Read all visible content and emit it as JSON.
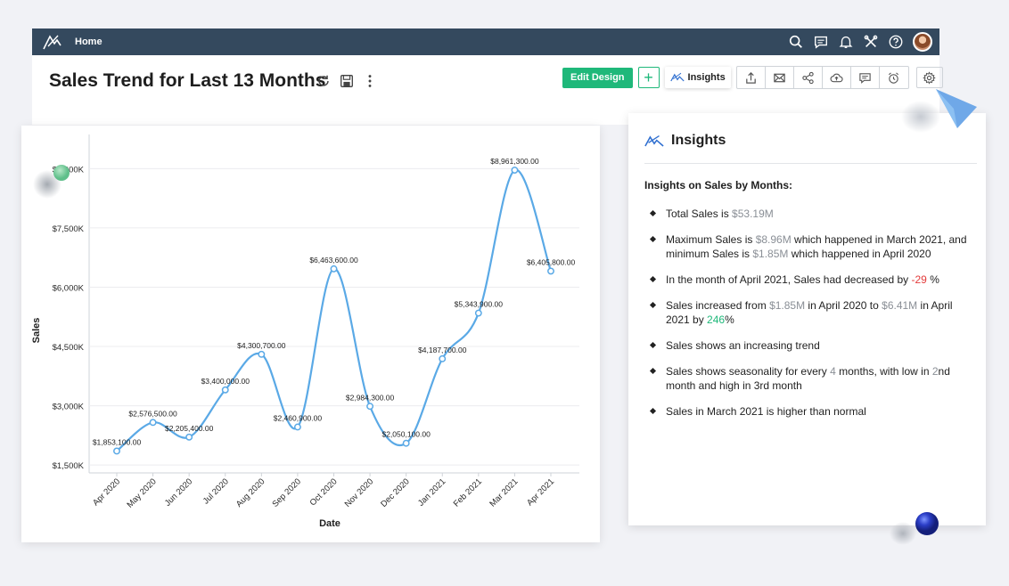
{
  "topbar": {
    "home_label": "Home",
    "icons": [
      "search-icon",
      "chat-icon",
      "bell-icon",
      "tools-icon",
      "help-icon",
      "avatar"
    ]
  },
  "header": {
    "title": "Sales Trend for Last 13 Months",
    "edit_design_label": "Edit Design",
    "add_label": "+",
    "insights_label": "Insights"
  },
  "chart_data": {
    "type": "line",
    "x": [
      "Apr 2020",
      "May 2020",
      "Jun 2020",
      "Jul 2020",
      "Aug 2020",
      "Sep 2020",
      "Oct 2020",
      "Nov 2020",
      "Dec 2020",
      "Jan 2021",
      "Feb 2021",
      "Mar 2021",
      "Apr 2021"
    ],
    "values": [
      1853100,
      2576500,
      2205400,
      3400000,
      4300700,
      2460900,
      6463600,
      2984300,
      2050100,
      4187700,
      5343900,
      8961300,
      6405800
    ],
    "data_labels": [
      "$1,853,100.00",
      "$2,576,500.00",
      "$2,205,400.00",
      "$3,400,000.00",
      "$4,300,700.00",
      "$2,460,900.00",
      "$6,463,600.00",
      "$2,984,300.00",
      "$2,050,100.00",
      "$4,187,700.00",
      "$5,343,900.00",
      "$8,961,300.00",
      "$6,405,800.00"
    ],
    "xlabel": "Date",
    "ylabel": "Sales",
    "yticks": [
      1500000,
      3000000,
      4500000,
      6000000,
      7500000,
      9000000
    ],
    "ytick_labels": [
      "$1,500K",
      "$3,000K",
      "$4,500K",
      "$6,000K",
      "$7,500K",
      "$9,000K"
    ],
    "ylim": [
      1300000,
      9300000
    ],
    "grid": true,
    "line_color": "#5aa9e6"
  },
  "insights": {
    "title": "Insights",
    "subtitle": "Insights on Sales by Months:",
    "items": [
      {
        "parts": [
          {
            "t": "Total Sales is "
          },
          {
            "t": "$53.19M",
            "c": "gray"
          }
        ]
      },
      {
        "parts": [
          {
            "t": "Maximum Sales is "
          },
          {
            "t": "$8.96M",
            "c": "gray"
          },
          {
            "t": " which happened in March 2021, and minimum Sales is "
          },
          {
            "t": "$1.85M",
            "c": "gray"
          },
          {
            "t": " which happened in April 2020"
          }
        ]
      },
      {
        "parts": [
          {
            "t": " In the month of April 2021, Sales had decreased by "
          },
          {
            "t": " -29",
            "c": "red"
          },
          {
            "t": " %"
          }
        ]
      },
      {
        "parts": [
          {
            "t": "Sales increased from "
          },
          {
            "t": " $1.85M ",
            "c": "gray"
          },
          {
            "t": " in April 2020 to "
          },
          {
            "t": " $6.41M",
            "c": "gray"
          },
          {
            "t": " in April 2021 by "
          },
          {
            "t": "246",
            "c": "green"
          },
          {
            "t": "%"
          }
        ]
      },
      {
        "parts": [
          {
            "t": "Sales shows an increasing trend"
          }
        ]
      },
      {
        "parts": [
          {
            "t": "Sales shows seasonality for every "
          },
          {
            "t": "4",
            "c": "gray"
          },
          {
            "t": " months, with low in "
          },
          {
            "t": "2",
            "c": "gray"
          },
          {
            "t": "nd month and high in 3rd month"
          }
        ]
      },
      {
        "parts": [
          {
            "t": "Sales in March 2021 is higher than normal"
          }
        ]
      }
    ]
  },
  "colors": {
    "accent": "#1fb87a",
    "appbar": "#34495e",
    "line": "#5aa9e6"
  }
}
